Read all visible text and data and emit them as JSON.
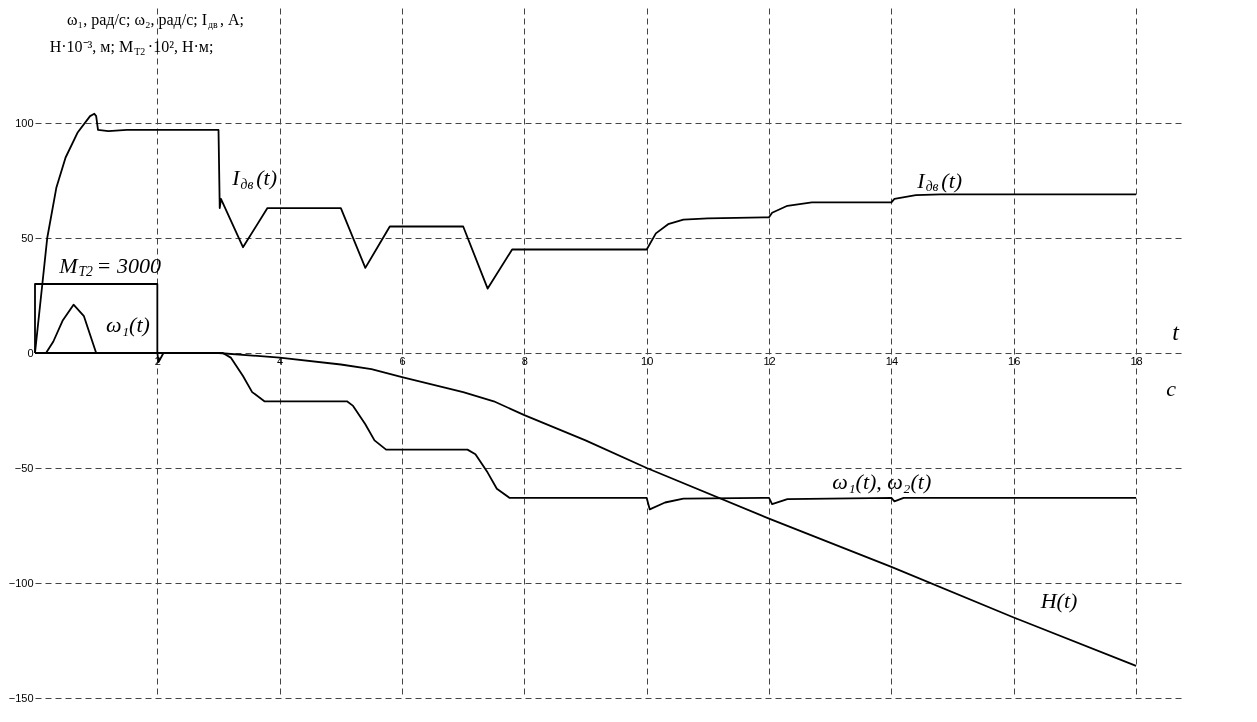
{
  "chart_data": {
    "type": "line",
    "ylabel": "ω₁, рад/с; ω₂, рад/с; I$_{дв}$, А;\nH·10⁻³, м; M$_{Т2}$·10², Н·м;",
    "xlabel": "t",
    "annotations": [
      "M$_{Т2}$ = 3000",
      "ω₁(t)",
      "I$_{дв}$(t)",
      "I$_{дв}$(t)",
      "ω₁(t), ω₂(t)",
      "H(t)",
      "с"
    ],
    "xlim": [
      0,
      18.8
    ],
    "xticks": [
      2,
      4,
      6,
      8,
      10,
      12,
      14,
      16,
      18
    ],
    "ylim": [
      -150,
      150
    ],
    "yticks": [
      -150,
      -100,
      -50,
      0,
      50,
      100
    ],
    "grid": true,
    "marker": "none",
    "line_style": "solid",
    "series": [
      {
        "color": "#000000",
        "x": [
          0,
          0.1,
          0.2,
          0.35,
          0.5,
          0.7,
          0.9,
          0.97,
          1.0,
          1.03,
          1.2,
          1.5,
          3.0,
          3.02,
          3.04,
          3.4,
          3.8,
          5.0,
          5.4,
          5.8,
          7.0,
          7.4,
          7.8,
          10.0,
          10.15,
          10.35,
          10.6,
          11,
          12,
          12.05,
          12.3,
          12.7,
          14,
          14.05,
          14.4,
          14.8,
          18
        ],
        "values": [
          0,
          25,
          50,
          72,
          85,
          96,
          103,
          104,
          103,
          97,
          96.5,
          97,
          97,
          63,
          67,
          46,
          63,
          63,
          37,
          55,
          55,
          28,
          45,
          45,
          52,
          56,
          58,
          58.5,
          59,
          61,
          64,
          65.5,
          65.5,
          67,
          68.6,
          69,
          69
        ]
      },
      {
        "color": "#000000",
        "type": "step",
        "x": [
          0,
          0,
          2,
          2
        ],
        "values": [
          0,
          30,
          30,
          0
        ]
      },
      {
        "color": "#000000",
        "x": [
          0,
          0.18,
          0.3,
          0.45,
          0.63,
          0.8,
          1.0,
          2.0,
          2.02,
          2.1,
          3.07,
          3.2,
          3.4,
          3.55,
          3.75,
          5.1,
          5.2,
          5.4,
          5.55,
          5.74,
          7.07,
          7.2,
          7.4,
          7.55,
          7.76,
          10,
          10.05,
          10.3,
          10.6,
          12,
          12.05,
          12.3,
          14,
          14.05,
          14.2,
          18
        ],
        "values": [
          0,
          0,
          5,
          14,
          21,
          16,
          0,
          0,
          -4,
          0,
          0,
          -2,
          -10,
          -17,
          -21,
          -21,
          -23,
          -31,
          -38,
          -42,
          -42,
          -44,
          -52,
          -59,
          -63,
          -63,
          -68,
          -65,
          -63.3,
          -63,
          -65.7,
          -63.5,
          -63,
          -64.5,
          -63,
          -63
        ]
      },
      {
        "color": "#000000",
        "x": [
          0,
          3,
          4,
          5,
          5.5,
          6,
          7,
          7.5,
          8,
          9,
          10,
          12,
          14,
          16,
          18
        ],
        "values": [
          0,
          0,
          -2,
          -5,
          -7,
          -10.5,
          -17,
          -21,
          -27,
          -38,
          -50,
          -72,
          -93,
          -115,
          -136
        ]
      }
    ]
  }
}
